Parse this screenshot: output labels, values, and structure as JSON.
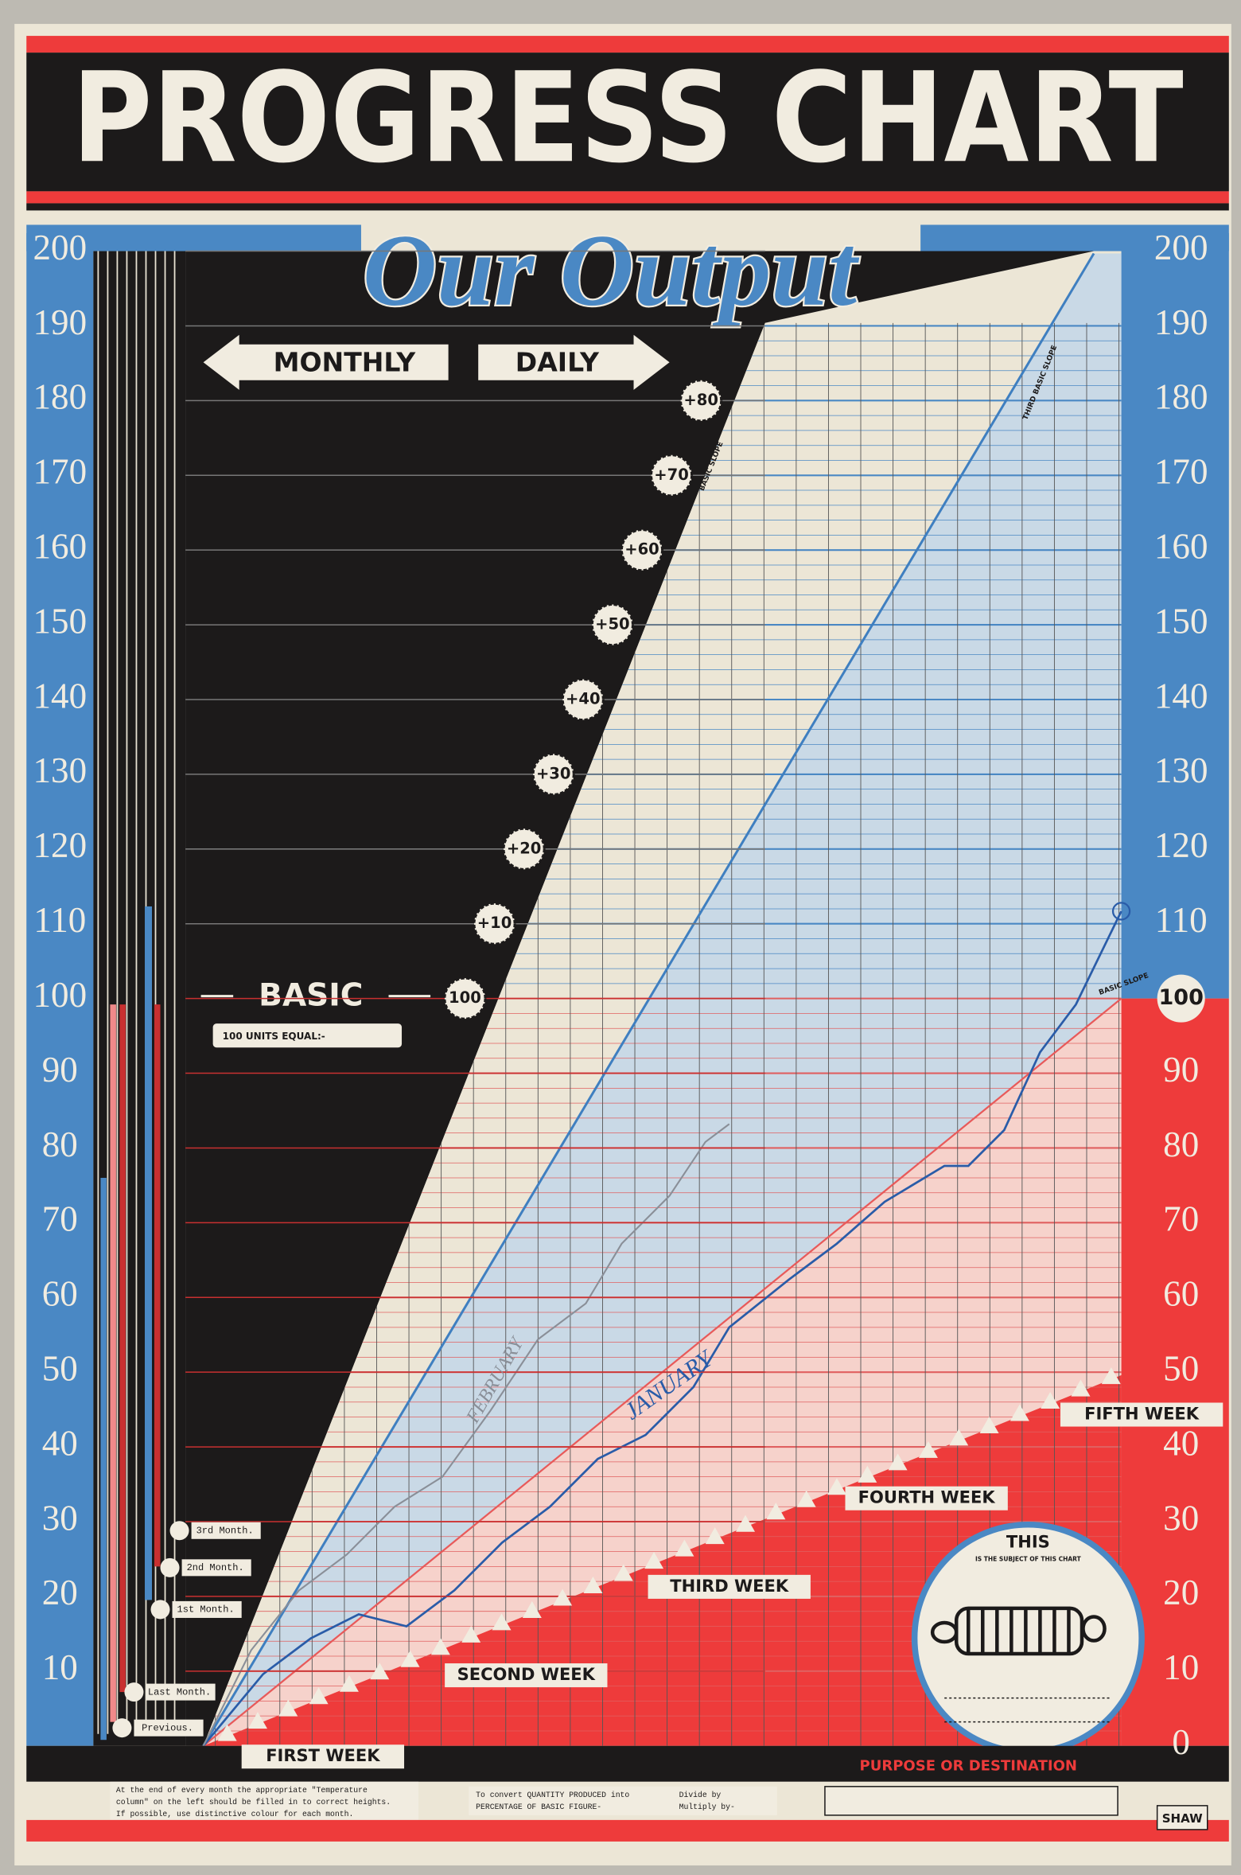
{
  "header": {
    "title": "PROGRESS CHART",
    "subtitle": "Our Output"
  },
  "arrows": {
    "monthly": "MONTHLY",
    "daily": "DAILY",
    "basic": "BASIC",
    "units": "100 UNITS EQUAL:-"
  },
  "left_scale": [
    "200",
    "190",
    "180",
    "170",
    "160",
    "150",
    "140",
    "130",
    "120",
    "110",
    "100",
    "90",
    "80",
    "70",
    "60",
    "50",
    "40",
    "30",
    "20",
    "10"
  ],
  "right_scale": [
    "200",
    "190",
    "180",
    "170",
    "160",
    "150",
    "140",
    "130",
    "120",
    "110",
    "100",
    "90",
    "80",
    "70",
    "60",
    "50",
    "40",
    "30",
    "20",
    "10",
    "0"
  ],
  "badges": [
    "100",
    "+10",
    "+20",
    "+30",
    "+40",
    "+50",
    "+60",
    "+70",
    "+80"
  ],
  "slopes": [
    "BASIC SLOPE",
    "THIRD BASIC SLOPE",
    "BASIC SLOPE"
  ],
  "line_labels": [
    "JANUARY",
    "FEBRUARY"
  ],
  "weeks": [
    "FIRST WEEK",
    "SECOND WEEK",
    "THIRD WEEK",
    "FOURTH WEEK",
    "FIFTH WEEK"
  ],
  "thermometer": [
    "3rd Month.",
    "2nd Month.",
    "1st Month.",
    "Last Month.",
    "Previous."
  ],
  "subject": {
    "title": "THIS",
    "caption": "IS THE SUBJECT OF THIS CHART"
  },
  "notes": [
    "At the end of every month the appropriate \"Temperature",
    "column\" on the left should be filled in to correct heights.",
    "If possible, use distinctive colour for each month."
  ],
  "convert": [
    "To convert QUANTITY PRODUCED into",
    "PERCENTAGE OF BASIC FIGURE-"
  ],
  "divide": [
    "Divide by",
    "Multiply by-"
  ],
  "purpose": "PURPOSE OR DESTINATION",
  "signature": "SHAW"
}
